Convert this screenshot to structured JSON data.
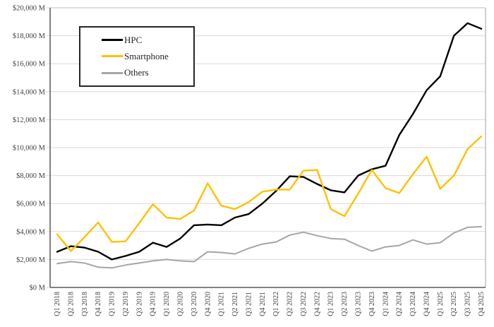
{
  "chart_data": {
    "type": "line",
    "title": "",
    "xlabel": "",
    "ylabel": "",
    "grid": "horizontal",
    "legend_position": "inside-top-left",
    "categories": [
      "Q1 2018",
      "Q2 2018",
      "Q3 2018",
      "Q4 2018",
      "Q1 2019",
      "Q2 2019",
      "Q3 2019",
      "Q4 2019",
      "Q1 2020",
      "Q2 2020",
      "Q3 2020",
      "Q4 2020",
      "Q1 2021",
      "Q2 2021",
      "Q3 2021",
      "Q4 2021",
      "Q1 2022",
      "Q2 2022",
      "Q3 2022",
      "Q4 2022",
      "Q1 2023",
      "Q2 2023",
      "Q3 2023",
      "Q4 2023",
      "Q1 2024",
      "Q2 2024",
      "Q3 2024",
      "Q4 2024",
      "Q1 2025",
      "Q2 2025",
      "Q3 2025",
      "Q4 2025"
    ],
    "series": [
      {
        "name": "HPC",
        "color": "#000000",
        "stroke_width": 2.4,
        "values": [
          2550,
          2950,
          2850,
          2550,
          2000,
          2250,
          2550,
          3200,
          2900,
          3500,
          4450,
          4500,
          4450,
          5000,
          5250,
          6000,
          6900,
          7950,
          7900,
          7400,
          6950,
          6800,
          8000,
          8450,
          8700,
          10900,
          12400,
          14100,
          15100,
          18000,
          18900,
          18500
        ]
      },
      {
        "name": "Smartphone",
        "color": "#FFC000",
        "stroke_width": 2.4,
        "values": [
          3800,
          2600,
          3600,
          4650,
          3250,
          3300,
          4600,
          5950,
          5000,
          4900,
          5500,
          7450,
          5850,
          5600,
          6100,
          6850,
          7000,
          7000,
          8350,
          8400,
          5600,
          5100,
          6700,
          8400,
          7100,
          6750,
          8100,
          9350,
          7050,
          8000,
          9900,
          10800
        ]
      },
      {
        "name": "Others",
        "color": "#A6A6A6",
        "stroke_width": 2,
        "values": [
          1700,
          1850,
          1750,
          1450,
          1400,
          1600,
          1750,
          1900,
          2000,
          1900,
          1850,
          2550,
          2500,
          2400,
          2800,
          3100,
          3250,
          3750,
          3950,
          3700,
          3500,
          3450,
          3000,
          2600,
          2900,
          3000,
          3400,
          3100,
          3200,
          3900,
          4300,
          4350
        ]
      }
    ],
    "y_axis": {
      "min": 0,
      "max": 20000,
      "step": 2000,
      "tick_labels": [
        "$0 M",
        "$2,000 M",
        "$4,000 M",
        "$6,000 M",
        "$8,000 M",
        "$10,000 M",
        "$12,000 M",
        "$14,000 M",
        "$16,000 M",
        "$18,000 M",
        "$20,000 M"
      ]
    },
    "colors": {
      "gridline": "#D9D9D9",
      "axis_line": "#595959",
      "outer_border": "#BFBFBF",
      "tick_text": "#404040",
      "legend_border": "#262626",
      "background": "#FFFFFF"
    }
  }
}
